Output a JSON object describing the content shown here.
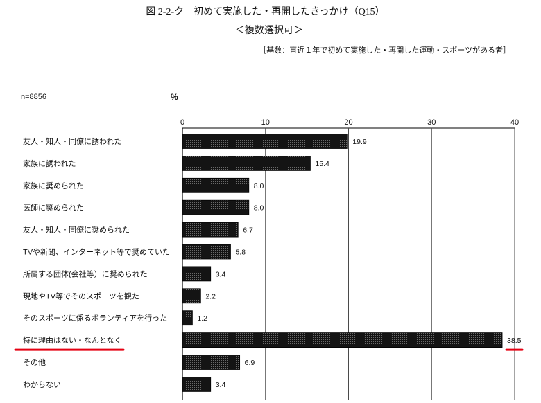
{
  "chart_data": {
    "type": "bar",
    "orientation": "horizontal",
    "title": "図 2-2-ク　初めて実施した・再開したきっかけ（Q15）",
    "subtitle": "＜複数選択可＞",
    "note": "［基数：直近１年で初めて実施した・再開した運動・スポーツがある者］",
    "sample_size": "n=8856",
    "xlabel": "%",
    "categories": [
      "友人・知人・同僚に誘われた",
      "家族に誘われた",
      "家族に奨められた",
      "医師に奨められた",
      "友人・知人・同僚に奨められた",
      "TVや新聞、インターネット等で奨めていた",
      "所属する団体(会社等）に奨められた",
      "現地やTV等でそのスポーツを観た",
      "そのスポーツに係るボランティアを行った",
      "特に理由はない・なんとなく",
      "その他",
      "わからない"
    ],
    "values": [
      19.9,
      15.4,
      8.0,
      8.0,
      6.7,
      5.8,
      3.4,
      2.2,
      1.2,
      38.5,
      6.9,
      3.4
    ],
    "xlim": [
      0,
      40
    ],
    "xticks": [
      0,
      10,
      20,
      30,
      40
    ],
    "tick_position": "top",
    "grid": true,
    "highlight": {
      "index": 9
    }
  },
  "colors": {
    "bar": "#141414",
    "bar_dots": "#6a6a6a",
    "grid": "#4a4a4a",
    "axis": "#000000",
    "highlight": "#e50012"
  }
}
